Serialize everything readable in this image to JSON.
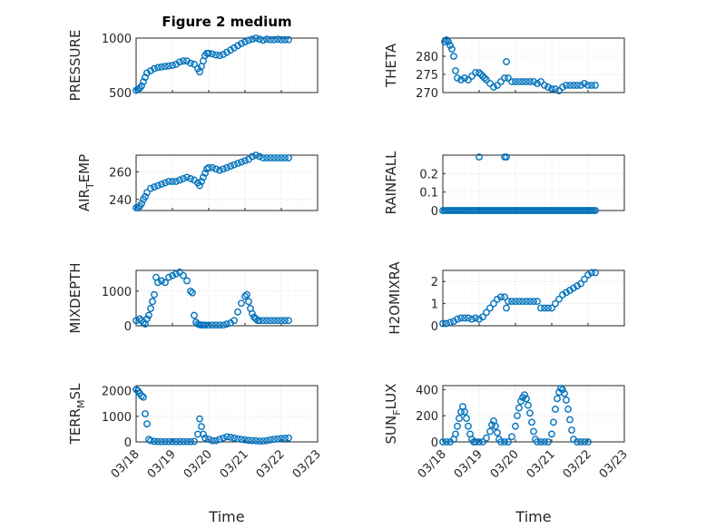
{
  "figure_title": "Figure 2 medium",
  "x_axis_label": "Time",
  "x_tick_labels": [
    "03/18",
    "03/19",
    "03/20",
    "03/21",
    "03/22",
    "03/23"
  ],
  "marker_color": "#0072BD",
  "chart_data": [
    {
      "type": "scatter",
      "ylabel": "PRESSURE",
      "ylim": [
        500,
        1000
      ],
      "yticks": [
        500,
        1000
      ],
      "ytick_labels": [
        "500",
        "1000"
      ],
      "grid": true,
      "x_range_days": [
        0,
        5
      ],
      "x_tick_labels": [
        "03/18",
        "03/19",
        "03/20",
        "03/21",
        "03/22",
        "03/23"
      ],
      "x": [
        0,
        0.05,
        0.1,
        0.15,
        0.2,
        0.25,
        0.3,
        0.4,
        0.5,
        0.6,
        0.7,
        0.8,
        0.9,
        1.0,
        1.1,
        1.2,
        1.3,
        1.4,
        1.5,
        1.6,
        1.7,
        1.75,
        1.8,
        1.85,
        1.9,
        1.95,
        2.0,
        2.1,
        2.2,
        2.3,
        2.4,
        2.5,
        2.6,
        2.7,
        2.8,
        2.9,
        3.0,
        3.1,
        3.2,
        3.3,
        3.4,
        3.5,
        3.6,
        3.7,
        3.8,
        3.9,
        4.0,
        4.1,
        4.2
      ],
      "y": [
        520,
        530,
        540,
        560,
        600,
        640,
        680,
        700,
        720,
        730,
        735,
        740,
        745,
        750,
        760,
        780,
        790,
        790,
        770,
        760,
        720,
        690,
        740,
        790,
        840,
        860,
        860,
        855,
        845,
        840,
        850,
        870,
        890,
        910,
        930,
        950,
        965,
        980,
        990,
        1000,
        990,
        980,
        990,
        985,
        985,
        990,
        985,
        985,
        985
      ]
    },
    {
      "type": "scatter",
      "ylabel": "THETA",
      "ylim": [
        270,
        285
      ],
      "yticks": [
        270,
        275,
        280
      ],
      "ytick_labels": [
        "270",
        "275",
        "280"
      ],
      "grid": true,
      "x_range_days": [
        0,
        5
      ],
      "x_tick_labels": [
        "03/18",
        "03/19",
        "03/20",
        "03/21",
        "03/22",
        "03/23"
      ],
      "x": [
        0.05,
        0.1,
        0.15,
        0.2,
        0.25,
        0.3,
        0.35,
        0.4,
        0.5,
        0.6,
        0.7,
        0.8,
        0.9,
        1.0,
        1.05,
        1.1,
        1.15,
        1.2,
        1.3,
        1.4,
        1.5,
        1.6,
        1.7,
        1.75,
        1.8,
        1.9,
        2.0,
        2.1,
        2.2,
        2.3,
        2.4,
        2.5,
        2.6,
        2.7,
        2.8,
        2.9,
        3.0,
        3.1,
        3.2,
        3.3,
        3.4,
        3.5,
        3.6,
        3.7,
        3.8,
        3.9,
        4.0,
        4.1,
        4.2
      ],
      "y": [
        284,
        284.5,
        284,
        283,
        282,
        280,
        276,
        274,
        273.5,
        274,
        273.5,
        274.5,
        275.5,
        275.5,
        275,
        274.5,
        274,
        273.5,
        272.5,
        271.5,
        272,
        273,
        274,
        278.5,
        274,
        273,
        273,
        273,
        273,
        273,
        273,
        273,
        272.5,
        273,
        272,
        271.5,
        271,
        271,
        270.5,
        271.5,
        272,
        272,
        272,
        272,
        272,
        272.5,
        272,
        272,
        272
      ]
    },
    {
      "type": "scatter",
      "ylabel": "AIR_TEMP",
      "ylim": [
        232,
        272
      ],
      "yticks": [
        240,
        260
      ],
      "ytick_labels": [
        "240",
        "260"
      ],
      "grid": true,
      "x_range_days": [
        0,
        5
      ],
      "x_tick_labels": [
        "03/18",
        "03/19",
        "03/20",
        "03/21",
        "03/22",
        "03/23"
      ],
      "x": [
        0,
        0.05,
        0.1,
        0.15,
        0.2,
        0.25,
        0.3,
        0.4,
        0.5,
        0.6,
        0.7,
        0.8,
        0.9,
        1.0,
        1.1,
        1.2,
        1.3,
        1.4,
        1.5,
        1.6,
        1.7,
        1.75,
        1.8,
        1.85,
        1.9,
        1.95,
        2.0,
        2.1,
        2.2,
        2.3,
        2.4,
        2.5,
        2.6,
        2.7,
        2.8,
        2.9,
        3.0,
        3.1,
        3.2,
        3.3,
        3.4,
        3.5,
        3.6,
        3.7,
        3.8,
        3.9,
        4.0,
        4.1,
        4.2
      ],
      "y": [
        234,
        234,
        235,
        237,
        240,
        242,
        245,
        248,
        249,
        250,
        251,
        252,
        253,
        253,
        253,
        254,
        255,
        256,
        255,
        254,
        252,
        250,
        253,
        256,
        259,
        262,
        263,
        263,
        262,
        261,
        262,
        263,
        264,
        265,
        266,
        267,
        268,
        269,
        271,
        272,
        271,
        270,
        270,
        270,
        270,
        270,
        270,
        270,
        270
      ]
    },
    {
      "type": "scatter",
      "ylabel": "RAINFALL",
      "ylim": [
        0,
        0.3
      ],
      "yticks": [
        0,
        0.1,
        0.2
      ],
      "ytick_labels": [
        "0",
        "0.1",
        "0.2"
      ],
      "grid": true,
      "x_range_days": [
        0,
        5
      ],
      "x_tick_labels": [
        "03/18",
        "03/19",
        "03/20",
        "03/21",
        "03/22",
        "03/23"
      ],
      "x": [
        0,
        0.05,
        0.1,
        0.15,
        0.2,
        0.25,
        0.3,
        0.35,
        0.4,
        0.45,
        0.5,
        0.55,
        0.6,
        0.65,
        0.7,
        0.75,
        0.8,
        0.85,
        0.9,
        0.95,
        1.0,
        1.05,
        1.1,
        1.15,
        1.2,
        1.25,
        1.3,
        1.35,
        1.4,
        1.45,
        1.5,
        1.55,
        1.6,
        1.65,
        1.7,
        1.75,
        1.8,
        1.85,
        1.9,
        1.95,
        2.0,
        2.05,
        2.1,
        2.15,
        2.2,
        2.25,
        2.3,
        2.35,
        2.4,
        2.45,
        2.5,
        2.55,
        2.6,
        2.65,
        2.7,
        2.75,
        2.8,
        2.85,
        2.9,
        2.95,
        3.0,
        3.05,
        3.1,
        3.15,
        3.2,
        3.25,
        3.3,
        3.35,
        3.4,
        3.45,
        3.5,
        3.55,
        3.6,
        3.65,
        3.7,
        3.75,
        3.8,
        3.85,
        3.9,
        3.95,
        4.0,
        4.05,
        4.1,
        4.15,
        4.2,
        1.0,
        1.7,
        1.75
      ],
      "y": [
        0,
        0,
        0,
        0,
        0,
        0,
        0,
        0,
        0,
        0,
        0,
        0,
        0,
        0,
        0,
        0,
        0,
        0,
        0,
        0,
        0,
        0,
        0,
        0,
        0,
        0,
        0,
        0,
        0,
        0,
        0,
        0,
        0,
        0,
        0,
        0,
        0,
        0,
        0,
        0,
        0,
        0,
        0,
        0,
        0,
        0,
        0,
        0,
        0,
        0,
        0,
        0,
        0,
        0,
        0,
        0,
        0,
        0,
        0,
        0,
        0,
        0,
        0,
        0,
        0,
        0,
        0,
        0,
        0,
        0,
        0,
        0,
        0,
        0,
        0,
        0,
        0,
        0,
        0,
        0,
        0,
        0,
        0,
        0,
        0,
        0.29,
        0.29,
        0.29
      ]
    },
    {
      "type": "scatter",
      "ylabel": "MIXDEPTH",
      "ylim": [
        0,
        1600
      ],
      "yticks": [
        0,
        1000
      ],
      "ytick_labels": [
        "0",
        "1000"
      ],
      "grid": true,
      "x_range_days": [
        0,
        5
      ],
      "x_tick_labels": [
        "03/18",
        "03/19",
        "03/20",
        "03/21",
        "03/22",
        "03/23"
      ],
      "x": [
        0,
        0.1,
        0.15,
        0.2,
        0.25,
        0.3,
        0.35,
        0.4,
        0.45,
        0.5,
        0.55,
        0.6,
        0.7,
        0.8,
        0.9,
        1.0,
        1.1,
        1.2,
        1.3,
        1.4,
        1.5,
        1.55,
        1.6,
        1.65,
        1.7,
        1.75,
        1.8,
        1.85,
        1.9,
        2.0,
        2.1,
        2.2,
        2.3,
        2.4,
        2.5,
        2.6,
        2.7,
        2.8,
        2.9,
        3.0,
        3.05,
        3.1,
        3.15,
        3.2,
        3.25,
        3.3,
        3.35,
        3.4,
        3.5,
        3.6,
        3.7,
        3.8,
        3.9,
        4.0,
        4.1,
        4.2
      ],
      "y": [
        150,
        200,
        150,
        100,
        50,
        200,
        300,
        500,
        700,
        900,
        1400,
        1250,
        1300,
        1250,
        1400,
        1450,
        1500,
        1550,
        1450,
        1300,
        1000,
        950,
        300,
        100,
        50,
        30,
        20,
        20,
        20,
        20,
        20,
        20,
        20,
        20,
        50,
        80,
        150,
        400,
        650,
        850,
        900,
        700,
        500,
        350,
        250,
        200,
        150,
        150,
        150,
        150,
        150,
        150,
        150,
        150,
        150,
        150
      ]
    },
    {
      "type": "scatter",
      "ylabel": "H2OMIXRA",
      "ylim": [
        0,
        2.5
      ],
      "yticks": [
        0,
        1,
        2
      ],
      "ytick_labels": [
        "0",
        "1",
        "2"
      ],
      "grid": true,
      "x_range_days": [
        0,
        5
      ],
      "x_tick_labels": [
        "03/18",
        "03/19",
        "03/20",
        "03/21",
        "03/22",
        "03/23"
      ],
      "x": [
        0,
        0.1,
        0.2,
        0.3,
        0.4,
        0.5,
        0.6,
        0.7,
        0.8,
        0.9,
        1.0,
        1.1,
        1.2,
        1.3,
        1.4,
        1.5,
        1.6,
        1.7,
        1.75,
        1.8,
        1.9,
        2.0,
        2.1,
        2.2,
        2.3,
        2.4,
        2.5,
        2.6,
        2.7,
        2.8,
        2.9,
        3.0,
        3.1,
        3.2,
        3.3,
        3.4,
        3.5,
        3.6,
        3.7,
        3.8,
        3.9,
        4.0,
        4.1,
        4.2
      ],
      "y": [
        0.1,
        0.1,
        0.15,
        0.2,
        0.3,
        0.35,
        0.35,
        0.35,
        0.3,
        0.35,
        0.3,
        0.4,
        0.6,
        0.8,
        1.0,
        1.2,
        1.3,
        1.3,
        0.8,
        1.1,
        1.1,
        1.1,
        1.1,
        1.1,
        1.1,
        1.1,
        1.1,
        1.1,
        0.8,
        0.8,
        0.8,
        0.8,
        1.0,
        1.2,
        1.4,
        1.5,
        1.6,
        1.7,
        1.8,
        1.9,
        2.1,
        2.3,
        2.4,
        2.4
      ]
    },
    {
      "type": "scatter",
      "ylabel": "TERR_MSL",
      "ylim": [
        0,
        2200
      ],
      "yticks": [
        0,
        1000,
        2000
      ],
      "ytick_labels": [
        "0",
        "1000",
        "2000"
      ],
      "grid": true,
      "x_range_days": [
        0,
        5
      ],
      "x_tick_labels": [
        "03/18",
        "03/19",
        "03/20",
        "03/21",
        "03/22",
        "03/23"
      ],
      "x": [
        0,
        0.05,
        0.1,
        0.15,
        0.2,
        0.25,
        0.3,
        0.35,
        0.4,
        0.5,
        0.6,
        0.7,
        0.8,
        0.9,
        1.0,
        1.1,
        1.2,
        1.3,
        1.4,
        1.5,
        1.6,
        1.7,
        1.75,
        1.8,
        1.85,
        1.9,
        2.0,
        2.1,
        2.2,
        2.3,
        2.4,
        2.5,
        2.6,
        2.7,
        2.8,
        2.9,
        3.0,
        3.1,
        3.2,
        3.3,
        3.4,
        3.5,
        3.6,
        3.7,
        3.8,
        3.9,
        4.0,
        4.1,
        4.2
      ],
      "y": [
        2050,
        2000,
        1900,
        1800,
        1750,
        1100,
        700,
        100,
        50,
        20,
        10,
        10,
        10,
        10,
        10,
        10,
        10,
        10,
        10,
        10,
        20,
        300,
        900,
        600,
        300,
        150,
        100,
        50,
        50,
        100,
        150,
        200,
        180,
        150,
        120,
        100,
        80,
        60,
        50,
        40,
        30,
        30,
        50,
        80,
        100,
        120,
        130,
        140,
        150
      ]
    },
    {
      "type": "scatter",
      "ylabel": "SUN_FLUX",
      "ylim": [
        0,
        430
      ],
      "yticks": [
        0,
        200,
        400
      ],
      "ytick_labels": [
        "0",
        "200",
        "400"
      ],
      "grid": true,
      "x_range_days": [
        0,
        5
      ],
      "x_tick_labels": [
        "03/18",
        "03/19",
        "03/20",
        "03/21",
        "03/22",
        "03/23"
      ],
      "x": [
        0,
        0.1,
        0.2,
        0.3,
        0.35,
        0.4,
        0.45,
        0.5,
        0.55,
        0.6,
        0.65,
        0.7,
        0.75,
        0.8,
        0.85,
        0.9,
        1.0,
        1.1,
        1.2,
        1.3,
        1.35,
        1.4,
        1.45,
        1.5,
        1.55,
        1.6,
        1.7,
        1.8,
        1.9,
        2.0,
        2.05,
        2.1,
        2.15,
        2.2,
        2.25,
        2.3,
        2.35,
        2.4,
        2.45,
        2.5,
        2.55,
        2.6,
        2.7,
        2.8,
        2.9,
        3.0,
        3.05,
        3.1,
        3.15,
        3.2,
        3.25,
        3.3,
        3.35,
        3.4,
        3.45,
        3.5,
        3.55,
        3.6,
        3.7,
        3.8,
        3.9,
        4.0
      ],
      "y": [
        0,
        0,
        0,
        20,
        60,
        120,
        180,
        230,
        270,
        230,
        180,
        120,
        60,
        20,
        0,
        0,
        0,
        0,
        30,
        80,
        130,
        160,
        120,
        70,
        20,
        0,
        0,
        0,
        40,
        120,
        200,
        260,
        310,
        340,
        360,
        330,
        280,
        220,
        150,
        80,
        20,
        0,
        0,
        0,
        0,
        60,
        150,
        250,
        330,
        380,
        410,
        400,
        370,
        320,
        250,
        170,
        90,
        20,
        0,
        0,
        0,
        0
      ]
    }
  ]
}
